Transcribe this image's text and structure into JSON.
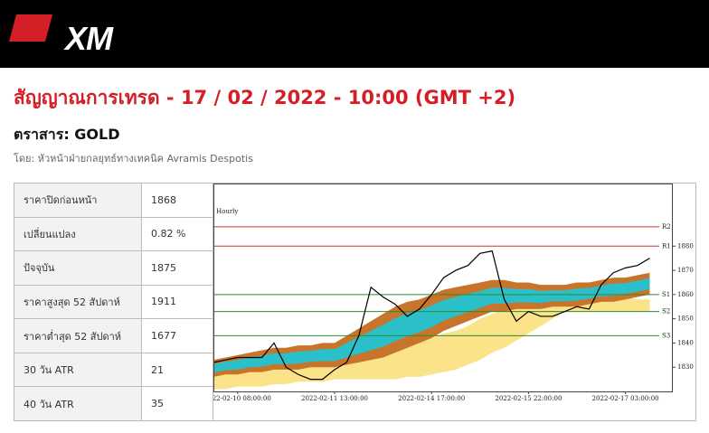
{
  "header": {
    "logo": "XM"
  },
  "title": "สัญญาณการเทรด - 17 / 02 / 2022 - 10:00 (GMT +2)",
  "instrument": "ตราสาร: GOLD",
  "byline": "โดย: หัวหน้าฝ่ายกลยุทธ์ทางเทคนิค Avramis Despotis",
  "table": {
    "rows": [
      [
        "ราคาปิดก่อนหน้า",
        "1868"
      ],
      [
        "เปลี่ยนแปลง",
        "0.82 %"
      ],
      [
        "ปัจจุบัน",
        "1875"
      ],
      [
        "ราคาสูงสุด 52 สัปดาห์",
        "1911"
      ],
      [
        "ราคาต่ำสุด 52 สัปดาห์",
        "1677"
      ],
      [
        "30 วัน ATR",
        "21"
      ],
      [
        "40 วัน ATR",
        "35"
      ]
    ]
  },
  "chart_data": {
    "type": "line",
    "title": "Hourly",
    "categories": [
      null,
      null,
      "2022-02-10 08:00:00",
      null,
      null,
      null,
      null,
      null,
      null,
      null,
      "2022-02-11 13:00:00",
      null,
      null,
      null,
      null,
      null,
      null,
      null,
      "2022-02-14 17:00:00",
      null,
      null,
      null,
      null,
      null,
      null,
      null,
      "2022-02-15 22:00:00",
      null,
      null,
      null,
      null,
      null,
      null,
      null,
      "2022-02-17 03:00:00",
      null,
      null
    ],
    "series": [
      {
        "color": "#000000",
        "values": [
          1832,
          1833,
          1834,
          1834,
          1834,
          1840,
          1830,
          1827,
          1825,
          1825,
          1829,
          1832,
          1843,
          1863,
          1859,
          1856,
          1851,
          1854,
          1860,
          1867,
          1870,
          1872,
          1877,
          1878,
          1858,
          1849,
          1853,
          1851,
          1851,
          1853,
          1855,
          1854,
          1864,
          1869,
          1871,
          1872,
          1875
        ]
      }
    ],
    "bands": [
      {
        "color": "#fbe38a",
        "upper": [
          1830,
          1831,
          1831,
          1832,
          1832,
          1833,
          1833,
          1833,
          1834,
          1834,
          1834,
          1835,
          1836,
          1836,
          1837,
          1838,
          1839,
          1841,
          1842,
          1844,
          1845,
          1847,
          1850,
          1852,
          1854,
          1856,
          1858,
          1859,
          1861,
          1862,
          1862,
          1861,
          1860,
          1860,
          1859,
          1858,
          1858
        ],
        "lower": [
          1821,
          1821,
          1822,
          1822,
          1822,
          1823,
          1823,
          1824,
          1824,
          1824,
          1825,
          1825,
          1825,
          1825,
          1825,
          1825,
          1826,
          1826,
          1827,
          1828,
          1829,
          1831,
          1833,
          1836,
          1838,
          1841,
          1844,
          1847,
          1850,
          1853,
          1853,
          1853,
          1853,
          1853,
          1853,
          1853,
          1853
        ]
      },
      {
        "color": "#c8742a",
        "inner_color": "#2bbfc9",
        "upper": [
          1833,
          1834,
          1835,
          1836,
          1837,
          1838,
          1838,
          1839,
          1839,
          1840,
          1840,
          1843,
          1846,
          1849,
          1852,
          1855,
          1857,
          1858,
          1860,
          1862,
          1863,
          1864,
          1865,
          1866,
          1866,
          1865,
          1865,
          1864,
          1864,
          1864,
          1865,
          1865,
          1866,
          1867,
          1867,
          1868,
          1869
        ],
        "lower": [
          1826,
          1827,
          1827,
          1828,
          1828,
          1829,
          1829,
          1829,
          1830,
          1830,
          1830,
          1831,
          1832,
          1833,
          1834,
          1836,
          1838,
          1840,
          1842,
          1845,
          1847,
          1849,
          1851,
          1853,
          1853,
          1854,
          1854,
          1854,
          1855,
          1855,
          1855,
          1856,
          1857,
          1857,
          1858,
          1859,
          1860
        ]
      }
    ],
    "levels": [
      {
        "label": "R2",
        "value": 1888,
        "color": "#c0392b"
      },
      {
        "label": "R1",
        "value": 1880,
        "color": "#c0392b"
      },
      {
        "label": "S1",
        "value": 1860,
        "color": "#2e8b2e"
      },
      {
        "label": "S2",
        "value": 1853,
        "color": "#2e8b2e"
      },
      {
        "label": "S3",
        "value": 1843,
        "color": "#2e8b2e"
      }
    ],
    "ylim": [
      1820,
      1901
    ],
    "yticks": [
      1830,
      1840,
      1850,
      1860,
      1870,
      1880
    ],
    "y_axis_side": "right"
  }
}
